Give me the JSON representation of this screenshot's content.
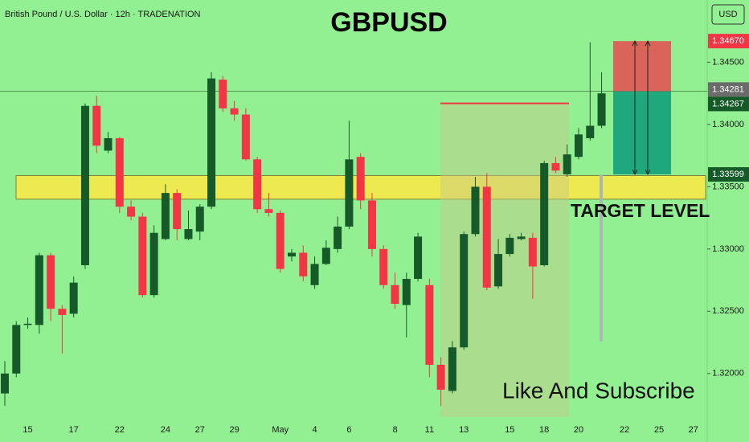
{
  "chart_data": {
    "type": "candlestick",
    "title": "GBPUSD",
    "subtitle": "British Pound / U.S. Dollar · 12h · TRADENATION",
    "currency": "USD",
    "annotations": [
      "TARGET LEVEL",
      "Like And Subscribe"
    ],
    "categories": [
      null,
      null,
      "15",
      null,
      null,
      null,
      "17",
      null,
      null,
      null,
      "22",
      null,
      null,
      null,
      "24",
      null,
      null,
      "27",
      null,
      null,
      "29",
      null,
      null,
      null,
      "May",
      null,
      null,
      "4",
      null,
      null,
      "6",
      null,
      null,
      null,
      "8",
      null,
      null,
      "11",
      null,
      null,
      "13",
      null,
      null,
      null,
      "15",
      null,
      null,
      "18",
      null,
      null,
      "20",
      null,
      null,
      null,
      "22",
      null,
      null,
      "25",
      null,
      null,
      "27"
    ],
    "open": [
      1.3184,
      1.32,
      1.3239,
      1.3239,
      1.3295,
      1.3252,
      1.3248,
      1.3287,
      1.3415,
      1.3379,
      1.3389,
      1.3334,
      1.3326,
      1.3263,
      1.3308,
      1.3345,
      1.3308,
      1.3314,
      1.3334,
      1.3436,
      1.3413,
      1.3408,
      1.3372,
      1.3332,
      1.3329,
      1.3294,
      1.3297,
      1.3271,
      1.3288,
      1.33,
      1.3318,
      1.3374,
      1.3339,
      1.33,
      1.3271,
      1.3255,
      1.3276,
      1.3271,
      1.3207,
      1.3186,
      1.3221,
      1.3312,
      1.335,
      1.327,
      1.3296,
      1.3308,
      1.3309,
      1.3287,
      1.3369,
      1.336,
      1.3374,
      1.3389,
      1.3399,
      null,
      null,
      null,
      null,
      null,
      null,
      null,
      null
    ],
    "high": [
      1.321,
      1.3242,
      1.3245,
      1.3297,
      1.3297,
      1.3255,
      1.3278,
      1.3417,
      1.3423,
      1.3394,
      1.339,
      1.3339,
      1.3329,
      1.3319,
      1.3352,
      1.3348,
      1.3331,
      1.3336,
      1.3442,
      1.3439,
      1.3419,
      1.3413,
      1.3374,
      1.3345,
      1.3331,
      1.33,
      1.3303,
      1.3294,
      1.3307,
      1.3326,
      1.3403,
      1.3377,
      1.3345,
      1.3303,
      1.3281,
      1.3281,
      1.3313,
      1.3276,
      1.3213,
      1.3226,
      1.3314,
      1.3358,
      1.3361,
      1.3308,
      1.3312,
      1.3313,
      1.3313,
      1.3371,
      1.3374,
      1.3384,
      1.3397,
      1.3466,
      1.3442,
      null,
      null,
      null,
      null,
      null,
      null,
      null,
      null
    ],
    "low": [
      1.3174,
      1.3197,
      1.3236,
      1.3232,
      1.3242,
      1.3216,
      1.3245,
      1.3284,
      1.3377,
      1.3377,
      1.3329,
      1.3323,
      1.3261,
      1.3261,
      1.3307,
      1.3307,
      1.3307,
      1.3307,
      1.3332,
      1.341,
      1.3403,
      1.3371,
      1.3329,
      1.3326,
      1.3281,
      1.329,
      1.3274,
      1.3268,
      1.3287,
      1.3297,
      1.3316,
      1.3332,
      1.3294,
      1.3268,
      1.3252,
      1.3229,
      1.3274,
      1.3197,
      1.3174,
      1.3184,
      1.3219,
      1.331,
      1.3267,
      1.3268,
      1.3294,
      1.3307,
      1.326,
      1.3286,
      1.3361,
      1.3358,
      1.3372,
      1.3387,
      1.3397,
      null,
      null,
      null,
      null,
      null,
      null,
      null,
      null
    ],
    "close": [
      1.32,
      1.3239,
      1.324,
      1.3295,
      1.3252,
      1.3247,
      1.3273,
      1.3415,
      1.3383,
      1.3389,
      1.3334,
      1.3326,
      1.3263,
      1.3313,
      1.3345,
      1.3316,
      1.3316,
      1.3334,
      1.3437,
      1.3413,
      1.3408,
      1.3372,
      1.3332,
      1.3329,
      1.3284,
      1.3297,
      1.3278,
      1.3288,
      1.3301,
      1.3318,
      1.3372,
      1.3339,
      1.33,
      1.3271,
      1.3256,
      1.3276,
      1.331,
      1.3207,
      1.3187,
      1.3221,
      1.3312,
      1.335,
      1.3269,
      1.3296,
      1.3309,
      1.331,
      1.3286,
      1.3369,
      1.3363,
      1.3376,
      1.3392,
      1.3399,
      1.3425,
      null,
      null,
      null,
      null,
      null,
      null,
      null,
      null
    ],
    "up_color": "#175a2a",
    "down_color": "#f23645",
    "ylim": [
      1.3165,
      1.35
    ],
    "yticks": [
      {
        "value": 1.345,
        "label": "1.34500"
      },
      {
        "value": 1.34,
        "label": "1.34000"
      },
      {
        "value": 1.335,
        "label": "1.33500"
      },
      {
        "value": 1.33,
        "label": "1.33000"
      },
      {
        "value": 1.325,
        "label": "1.32500"
      },
      {
        "value": 1.32,
        "label": "1.32000"
      }
    ],
    "price_labels": [
      {
        "value": 1.3467,
        "label": "1.34670",
        "color": "#f23645"
      },
      {
        "value": 1.34281,
        "label": "1.34281",
        "color": "#6b6b6b"
      },
      {
        "value": 1.34267,
        "label": "1.34267",
        "color": "#175a2a"
      },
      {
        "value": 1.33599,
        "label": "1.33599",
        "color": "#175a2a"
      }
    ],
    "zone": [
      1.334,
      1.3359
    ],
    "resistance": 1.3417,
    "grid": false
  }
}
